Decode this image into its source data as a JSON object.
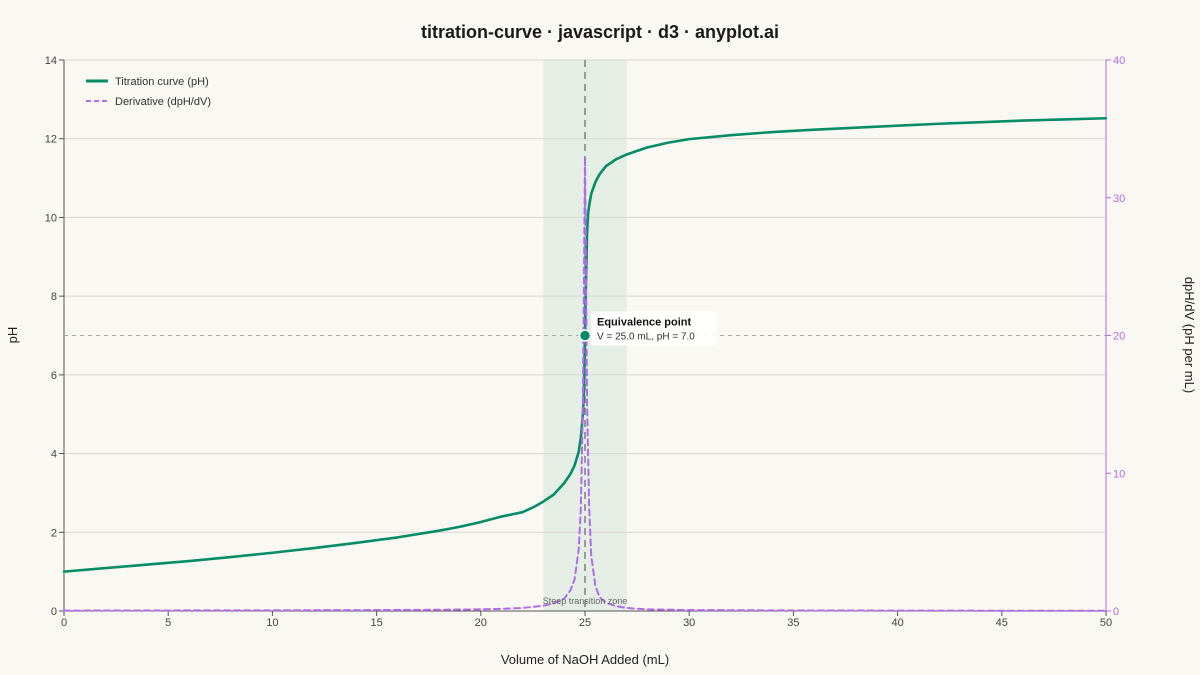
{
  "chart_data": {
    "type": "line",
    "title": "titration-curve · javascript · d3 · anyplot.ai",
    "xlabel": "Volume of NaOH Added (mL)",
    "ylabel": "pH",
    "y2label": "dpH/dV (pH per mL)",
    "xlim": [
      0,
      50
    ],
    "ylim": [
      0,
      14
    ],
    "y2lim": [
      0,
      40
    ],
    "x_ticks": [
      0,
      5,
      10,
      15,
      20,
      25,
      30,
      35,
      40,
      45,
      50
    ],
    "y_ticks": [
      0,
      2,
      4,
      6,
      8,
      10,
      12,
      14
    ],
    "y2_ticks": [
      0,
      10,
      20,
      30,
      40
    ],
    "grid": true,
    "legend_position": "top-left",
    "series": [
      {
        "name": "Titration curve (pH)",
        "axis": "left",
        "color": "#078C68",
        "x": [
          0,
          2,
          4,
          6,
          8,
          10,
          12,
          14,
          16,
          18,
          19,
          20,
          21,
          22,
          22.5,
          23,
          23.5,
          24,
          24.3,
          24.5,
          24.7,
          24.8,
          24.9,
          24.95,
          25.0,
          25.05,
          25.1,
          25.15,
          25.2,
          25.3,
          25.5,
          25.7,
          26,
          26.5,
          27,
          28,
          29,
          30,
          32,
          34,
          36,
          38,
          40,
          42,
          44,
          46,
          48,
          50
        ],
        "values": [
          1.0,
          1.09,
          1.18,
          1.27,
          1.37,
          1.48,
          1.6,
          1.73,
          1.87,
          2.04,
          2.14,
          2.26,
          2.4,
          2.51,
          2.63,
          2.78,
          2.96,
          3.25,
          3.48,
          3.7,
          4.05,
          4.4,
          5.0,
          5.6,
          7.0,
          8.4,
          9.6,
          10.1,
          10.3,
          10.6,
          10.9,
          11.1,
          11.3,
          11.48,
          11.6,
          11.78,
          11.9,
          11.99,
          12.09,
          12.17,
          12.23,
          12.28,
          12.33,
          12.38,
          12.42,
          12.46,
          12.49,
          12.52
        ]
      },
      {
        "name": "Derivative (dpH/dV)",
        "axis": "right",
        "color": "#B06BE8",
        "dashed": true,
        "x": [
          0,
          5,
          10,
          15,
          18,
          20,
          21,
          22,
          23,
          23.5,
          24,
          24.3,
          24.5,
          24.7,
          24.8,
          24.9,
          24.95,
          25.0,
          25.05,
          25.1,
          25.2,
          25.3,
          25.5,
          25.7,
          26,
          26.5,
          27,
          28,
          30,
          35,
          40,
          45,
          50
        ],
        "values": [
          0.03,
          0.04,
          0.05,
          0.07,
          0.09,
          0.12,
          0.16,
          0.22,
          0.38,
          0.55,
          0.9,
          1.5,
          2.3,
          4.5,
          7.5,
          15.0,
          24.0,
          33.0,
          24.0,
          15.0,
          7.5,
          4.0,
          1.8,
          1.0,
          0.6,
          0.35,
          0.22,
          0.12,
          0.07,
          0.04,
          0.03,
          0.02,
          0.02
        ]
      }
    ],
    "equivalence_point": {
      "x": 25.0,
      "y": 7.0,
      "label": "Equivalence point",
      "sublabel": "V = 25.0 mL, pH = 7.0"
    },
    "reference_line_y": 7.0,
    "reference_line_x": 25.0,
    "transition_zone": {
      "x_start": 23,
      "x_end": 27,
      "label": "Steep transition zone"
    },
    "colors": {
      "ph_line": "#078C68",
      "derivative_line": "#B06BE8",
      "zone_fill": "#DCEBE0",
      "grid": "#D9D6CF",
      "background": "#FAF8F2"
    }
  }
}
